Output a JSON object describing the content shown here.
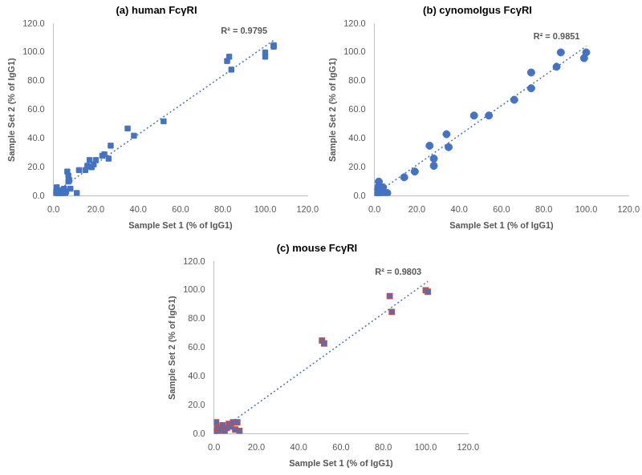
{
  "chart_data": [
    {
      "type": "scatter",
      "title": "(a) human FcγRI",
      "x_label": "Sample Set 1 (% of IgG1)",
      "y_label": "Sample Set 2 (% of IgG1)",
      "annotation": "R² = 0.9795",
      "x": [
        0.5,
        1,
        1.5,
        2,
        2.5,
        3,
        3.5,
        4,
        4.5,
        5,
        5.5,
        6,
        6.5,
        7,
        7,
        7.5,
        8,
        11,
        12,
        15,
        16,
        17,
        18,
        19,
        20,
        23,
        24,
        26,
        27,
        35,
        38,
        52,
        82,
        83,
        84,
        100,
        100,
        104,
        104
      ],
      "values": [
        1,
        3,
        6,
        2,
        0.5,
        4,
        1.5,
        3,
        2,
        5,
        1,
        3,
        17,
        14,
        10,
        11,
        5,
        2,
        18,
        18,
        21,
        25,
        20,
        22,
        25,
        28,
        29,
        26,
        35,
        47,
        42,
        52,
        94,
        97,
        88,
        97,
        100,
        105,
        104
      ],
      "color": "#4472c4",
      "marker": "square",
      "line_style": "dotted",
      "grid": false,
      "xlim": [
        0,
        120
      ],
      "ylim": [
        0,
        120
      ],
      "xticks": [
        {
          "value": 0,
          "label": "0.0"
        },
        {
          "value": 20,
          "label": "20.0"
        },
        {
          "value": 40,
          "label": "40.0"
        },
        {
          "value": 60,
          "label": "60.0"
        },
        {
          "value": 80,
          "label": "80.0"
        },
        {
          "value": 100,
          "label": "100.0"
        },
        {
          "value": 120,
          "label": "120.0"
        }
      ],
      "yticks": [
        {
          "value": 0,
          "label": "0.0"
        },
        {
          "value": 20,
          "label": "20.0"
        },
        {
          "value": 40,
          "label": "40.0"
        },
        {
          "value": 60,
          "label": "60.0"
        },
        {
          "value": 80,
          "label": "80.0"
        },
        {
          "value": 100,
          "label": "100.0"
        },
        {
          "value": 120,
          "label": "120.0"
        }
      ]
    },
    {
      "type": "scatter",
      "title": "(b) cynomolgus FcγRI",
      "x_label": "Sample Set 1 (% of IgG1)",
      "y_label": "Sample Set 2 (% of IgG1)",
      "annotation": "R² = 0.9851",
      "x": [
        0.5,
        1,
        1.5,
        2,
        2,
        2.5,
        3,
        4,
        4.5,
        6,
        14,
        19,
        26,
        28,
        28,
        34,
        35,
        47,
        54,
        66,
        74,
        74,
        86,
        88,
        99,
        100
      ],
      "values": [
        2,
        0.5,
        5,
        10,
        7,
        1,
        3,
        6,
        1,
        2,
        13,
        17,
        35,
        21,
        26,
        43,
        34,
        56,
        56,
        67,
        86,
        75,
        90,
        100,
        96,
        100
      ],
      "color": "#4472c4",
      "marker": "circle",
      "line_style": "dotted",
      "grid": false,
      "xlim": [
        0,
        120
      ],
      "ylim": [
        0,
        120
      ],
      "xticks": [
        {
          "value": 0,
          "label": "0.0"
        },
        {
          "value": 20,
          "label": "20.0"
        },
        {
          "value": 40,
          "label": "40.0"
        },
        {
          "value": 60,
          "label": "60.0"
        },
        {
          "value": 80,
          "label": "80.0"
        },
        {
          "value": 100,
          "label": "100.0"
        },
        {
          "value": 120,
          "label": "120.0"
        }
      ],
      "yticks": [
        {
          "value": 0,
          "label": "0.0"
        },
        {
          "value": 20,
          "label": "20.0"
        },
        {
          "value": 40,
          "label": "40.0"
        },
        {
          "value": 60,
          "label": "60.0"
        },
        {
          "value": 80,
          "label": "80.0"
        },
        {
          "value": 100,
          "label": "100.0"
        },
        {
          "value": 120,
          "label": "120.0"
        }
      ]
    },
    {
      "type": "scatter",
      "title": "(c) mouse FcγRI",
      "x_label": "Sample Set 1 (% of IgG1)",
      "y_label": "Sample Set 2 (% of IgG1)",
      "annotation": "R² = 0.9803",
      "x": [
        0.5,
        1,
        1.5,
        2,
        3,
        4,
        5,
        6,
        7,
        8,
        9,
        10,
        11,
        12,
        51,
        52,
        83,
        84,
        100,
        101
      ],
      "values": [
        2,
        8,
        4,
        1,
        3,
        6,
        2,
        4,
        7,
        5,
        8,
        3,
        8,
        2,
        65,
        63,
        96,
        85,
        100,
        99
      ],
      "color": "#4472c4",
      "marker": "square-outlined",
      "line_style": "dotted",
      "grid": false,
      "xlim": [
        0,
        120
      ],
      "ylim": [
        0,
        120
      ],
      "xticks": [
        {
          "value": 0,
          "label": "0.0"
        },
        {
          "value": 20,
          "label": "20.0"
        },
        {
          "value": 40,
          "label": "40.0"
        },
        {
          "value": 60,
          "label": "60.0"
        },
        {
          "value": 80,
          "label": "80.0"
        },
        {
          "value": 100,
          "label": "100.0"
        },
        {
          "value": 120,
          "label": "120.0"
        }
      ],
      "yticks": [
        {
          "value": 0,
          "label": "0.0"
        },
        {
          "value": 20,
          "label": "20.0"
        },
        {
          "value": 40,
          "label": "40.0"
        },
        {
          "value": 60,
          "label": "60.0"
        },
        {
          "value": 80,
          "label": "80.0"
        },
        {
          "value": 100,
          "label": "100.0"
        },
        {
          "value": 120,
          "label": "120.0"
        }
      ]
    }
  ]
}
